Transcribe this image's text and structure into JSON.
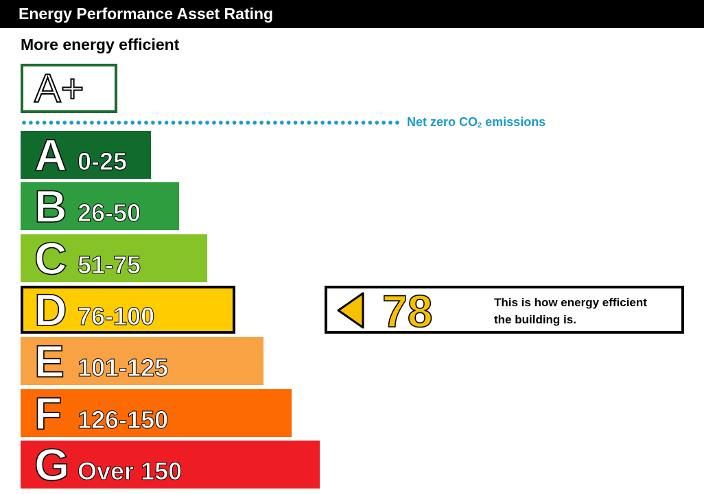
{
  "header": {
    "title": "Energy Performance Asset Rating"
  },
  "scale_top_label": "More energy efficient",
  "chart_data": {
    "type": "bar",
    "aplus_label": "A+",
    "net_zero": {
      "label_prefix": "Net zero CO",
      "label_sub": "2",
      "label_suffix": " emissions",
      "color": "#1b9bc9"
    },
    "bands": [
      {
        "letter": "A",
        "range": "0-25",
        "color": "#116b2d"
      },
      {
        "letter": "B",
        "range": "26-50",
        "color": "#2e9d40"
      },
      {
        "letter": "C",
        "range": "51-75",
        "color": "#85c326"
      },
      {
        "letter": "D",
        "range": "76-100",
        "color": "#ffcc00"
      },
      {
        "letter": "E",
        "range": "101-125",
        "color": "#f8a244"
      },
      {
        "letter": "F",
        "range": "126-150",
        "color": "#fd6a02"
      },
      {
        "letter": "G",
        "range": "Over 150",
        "color": "#ee1d23"
      }
    ],
    "current_rating": {
      "score": "78",
      "band": "D",
      "description_line1": "This is how energy efficient",
      "description_line2": "the building is.",
      "color": "#f7c100"
    }
  }
}
